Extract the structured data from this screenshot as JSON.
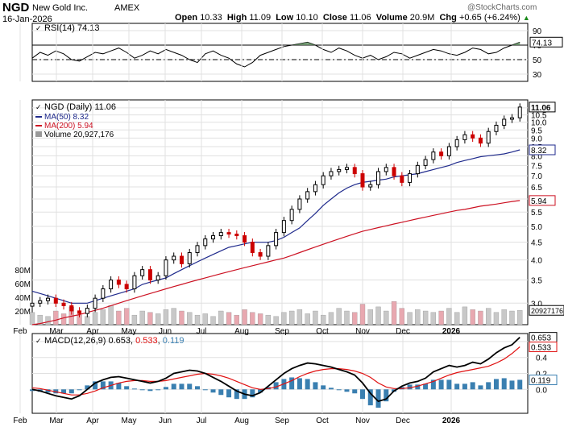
{
  "header": {
    "ticker": "NGD",
    "company": "New Gold Inc.",
    "exchange": "AMEX",
    "date": "16-Jan-2026",
    "open_label": "Open",
    "open": "10.33",
    "high_label": "High",
    "high": "11.09",
    "low_label": "Low",
    "low": "10.10",
    "close_label": "Close",
    "close": "11.06",
    "volume_label": "Volume",
    "volume": "20.9M",
    "chg_label": "Chg",
    "chg": "+0.65 (+6.24%)",
    "watermark": "@StockCharts.com",
    "arrow_glyph": "▲"
  },
  "colors": {
    "price_up": "#000000",
    "price_down": "#cc0000",
    "ma50": "#1f2a8c",
    "ma200": "#cc1122",
    "volume_up": "#c8c8c8",
    "volume_down": "#e8a8b0",
    "rsi_fill": "#5a8a5a",
    "macd_line": "#000000",
    "macd_signal": "#e01010",
    "macd_hist": "#3a7fb0",
    "grid": "#e0e0e0"
  },
  "chart_data": [
    {
      "type": "line",
      "panel": "rsi",
      "title": "RSI(14) 74.13",
      "legend_icon": "checkmark-icon",
      "y_ticks": [
        30,
        50,
        70,
        90
      ],
      "ylim": [
        20,
        100
      ],
      "overbought": 70,
      "oversold": 30,
      "last_value": "74.13",
      "x": [
        0,
        4,
        8,
        12,
        16,
        20,
        24,
        28,
        32,
        36,
        40,
        44,
        48,
        52,
        56,
        60,
        64,
        68,
        72,
        76,
        80,
        84,
        88,
        92,
        96,
        100,
        104,
        108,
        112,
        116,
        120,
        124,
        128,
        132,
        136,
        140,
        144,
        148,
        152,
        156,
        160,
        164,
        168,
        172,
        176,
        180,
        184,
        188,
        192,
        196,
        200,
        204,
        208,
        212,
        216,
        220,
        224,
        228,
        232,
        236,
        240,
        244,
        248
      ],
      "values": [
        52,
        60,
        56,
        62,
        58,
        50,
        48,
        54,
        60,
        58,
        62,
        66,
        60,
        52,
        56,
        62,
        58,
        64,
        60,
        56,
        50,
        46,
        58,
        62,
        56,
        52,
        44,
        40,
        46,
        56,
        60,
        64,
        68,
        70,
        72,
        74,
        70,
        64,
        60,
        66,
        62,
        56,
        52,
        56,
        50,
        54,
        60,
        58,
        52,
        56,
        60,
        64,
        62,
        58,
        56,
        60,
        66,
        64,
        58,
        60,
        66,
        70,
        74.13
      ]
    },
    {
      "type": "candlestick",
      "panel": "price",
      "title": "NGD (Daily) 11.06",
      "ma50_label": "MA(50) 8.32",
      "ma200_label": "MA(200) 5.94",
      "volume_label": "Volume 20,927,176",
      "y_scale": "log",
      "ylim": [
        2.6,
        11.6
      ],
      "y_ticks": [
        "3.0",
        "3.5",
        "4.0",
        "4.5",
        "5.0",
        "5.5",
        "6.0",
        "6.5",
        "7.0",
        "7.5",
        "8.0",
        "8.5",
        "9.0",
        "9.5",
        "10.0",
        "10.5",
        "11.0"
      ],
      "x_ticks": [
        "Feb",
        "Mar",
        "Apr",
        "May",
        "Jun",
        "Jul",
        "Aug",
        "Sep",
        "Oct",
        "Nov",
        "Dec",
        "2026"
      ],
      "last_close": "11.06",
      "ma50_last": "8.32",
      "ma200_last": "5.94",
      "volume_last": "20927176",
      "x": [
        0,
        4,
        8,
        12,
        16,
        20,
        24,
        28,
        32,
        36,
        40,
        44,
        48,
        52,
        56,
        60,
        64,
        68,
        72,
        76,
        80,
        84,
        88,
        92,
        96,
        100,
        104,
        108,
        112,
        116,
        120,
        124,
        128,
        132,
        136,
        140,
        144,
        148,
        152,
        156,
        160,
        164,
        168,
        172,
        176,
        180,
        184,
        188,
        192,
        196,
        200,
        204,
        208,
        212,
        216,
        220,
        224,
        228,
        232,
        236,
        240,
        244,
        248
      ],
      "close": [
        3.0,
        3.05,
        3.1,
        3.0,
        2.95,
        2.85,
        2.8,
        2.9,
        3.1,
        3.3,
        3.5,
        3.4,
        3.3,
        3.6,
        3.75,
        3.5,
        3.6,
        4.0,
        4.1,
        3.9,
        4.2,
        4.4,
        4.6,
        4.7,
        4.8,
        4.75,
        4.7,
        4.5,
        4.2,
        4.1,
        4.4,
        4.8,
        5.2,
        5.6,
        6.0,
        6.3,
        6.6,
        7.0,
        7.2,
        7.3,
        7.4,
        7.1,
        6.5,
        6.6,
        7.2,
        7.4,
        7.0,
        6.7,
        7.1,
        7.5,
        7.8,
        8.2,
        8.0,
        8.5,
        8.9,
        9.2,
        9.0,
        8.7,
        9.4,
        9.8,
        10.2,
        10.3,
        11.06
      ],
      "ma50": [
        3.25,
        3.2,
        3.15,
        3.1,
        3.05,
        3.0,
        3.0,
        3.0,
        3.05,
        3.1,
        3.15,
        3.2,
        3.25,
        3.3,
        3.4,
        3.45,
        3.5,
        3.55,
        3.65,
        3.75,
        3.85,
        3.95,
        4.05,
        4.15,
        4.25,
        4.35,
        4.4,
        4.45,
        4.5,
        4.5,
        4.5,
        4.55,
        4.65,
        4.8,
        4.95,
        5.2,
        5.45,
        5.75,
        6.0,
        6.25,
        6.45,
        6.6,
        6.7,
        6.75,
        6.8,
        6.85,
        6.95,
        7.0,
        7.05,
        7.1,
        7.2,
        7.3,
        7.4,
        7.5,
        7.65,
        7.75,
        7.85,
        7.95,
        8.0,
        8.05,
        8.1,
        8.2,
        8.32
      ],
      "ma200": [
        2.6,
        2.62,
        2.65,
        2.68,
        2.72,
        2.75,
        2.78,
        2.82,
        2.86,
        2.9,
        2.95,
        3.0,
        3.05,
        3.1,
        3.15,
        3.2,
        3.25,
        3.3,
        3.35,
        3.4,
        3.45,
        3.5,
        3.55,
        3.6,
        3.65,
        3.7,
        3.75,
        3.8,
        3.85,
        3.9,
        3.95,
        4.0,
        4.05,
        4.12,
        4.2,
        4.28,
        4.36,
        4.44,
        4.52,
        4.6,
        4.68,
        4.76,
        4.84,
        4.9,
        4.96,
        5.02,
        5.08,
        5.14,
        5.2,
        5.26,
        5.32,
        5.38,
        5.44,
        5.5,
        5.56,
        5.6,
        5.66,
        5.72,
        5.76,
        5.8,
        5.85,
        5.9,
        5.94
      ],
      "volume_millions": [
        18,
        14,
        12,
        20,
        16,
        26,
        14,
        12,
        18,
        22,
        28,
        20,
        24,
        14,
        20,
        18,
        16,
        22,
        24,
        20,
        18,
        14,
        16,
        12,
        20,
        18,
        14,
        22,
        18,
        16,
        14,
        12,
        18,
        20,
        22,
        16,
        20,
        14,
        18,
        24,
        20,
        18,
        30,
        22,
        26,
        20,
        34,
        24,
        18,
        22,
        20,
        18,
        20,
        24,
        18,
        26,
        22,
        20,
        24,
        18,
        22,
        20,
        20.9
      ],
      "volume_ticks": [
        "20M",
        "40M",
        "60M",
        "80M"
      ]
    },
    {
      "type": "line",
      "panel": "macd",
      "title": "MACD(12,26,9)",
      "macd_value": "0.653",
      "signal_value": "0.533",
      "histogram_value": "0.119",
      "legend_icon": "checkmark-icon",
      "y_ticks": [
        "0.0",
        "0.2",
        "0.4",
        "0.6"
      ],
      "ylim": [
        -0.3,
        0.7
      ],
      "x_ticks": [
        "Feb",
        "Mar",
        "Apr",
        "May",
        "Jun",
        "Jul",
        "Aug",
        "Sep",
        "Oct",
        "Nov",
        "Dec",
        "2026"
      ],
      "x": [
        0,
        4,
        8,
        12,
        16,
        20,
        24,
        28,
        32,
        36,
        40,
        44,
        48,
        52,
        56,
        60,
        64,
        68,
        72,
        76,
        80,
        84,
        88,
        92,
        96,
        100,
        104,
        108,
        112,
        116,
        120,
        124,
        128,
        132,
        136,
        140,
        144,
        148,
        152,
        156,
        160,
        164,
        168,
        172,
        176,
        180,
        184,
        188,
        192,
        196,
        200,
        204,
        208,
        212,
        216,
        220,
        224,
        228,
        232,
        236,
        240,
        244,
        248
      ],
      "macd": [
        0.0,
        -0.02,
        -0.05,
        -0.08,
        -0.1,
        -0.12,
        -0.08,
        0.0,
        0.08,
        0.12,
        0.15,
        0.16,
        0.14,
        0.12,
        0.1,
        0.08,
        0.1,
        0.14,
        0.2,
        0.22,
        0.24,
        0.23,
        0.2,
        0.15,
        0.1,
        0.04,
        -0.02,
        -0.06,
        -0.08,
        -0.04,
        0.04,
        0.12,
        0.2,
        0.26,
        0.3,
        0.33,
        0.32,
        0.3,
        0.28,
        0.25,
        0.22,
        0.18,
        0.08,
        -0.05,
        -0.15,
        -0.12,
        -0.02,
        0.04,
        0.08,
        0.1,
        0.14,
        0.22,
        0.26,
        0.3,
        0.28,
        0.3,
        0.34,
        0.32,
        0.38,
        0.46,
        0.52,
        0.56,
        0.653
      ],
      "signal": [
        0.02,
        0.01,
        -0.01,
        -0.03,
        -0.05,
        -0.07,
        -0.07,
        -0.05,
        -0.02,
        0.02,
        0.05,
        0.08,
        0.1,
        0.11,
        0.11,
        0.1,
        0.1,
        0.11,
        0.13,
        0.15,
        0.17,
        0.19,
        0.2,
        0.19,
        0.17,
        0.14,
        0.1,
        0.06,
        0.02,
        0.0,
        0.01,
        0.03,
        0.07,
        0.11,
        0.16,
        0.2,
        0.23,
        0.25,
        0.26,
        0.26,
        0.25,
        0.23,
        0.2,
        0.15,
        0.08,
        0.03,
        0.01,
        0.01,
        0.02,
        0.04,
        0.07,
        0.1,
        0.14,
        0.18,
        0.21,
        0.23,
        0.25,
        0.27,
        0.29,
        0.33,
        0.38,
        0.45,
        0.533
      ]
    }
  ]
}
